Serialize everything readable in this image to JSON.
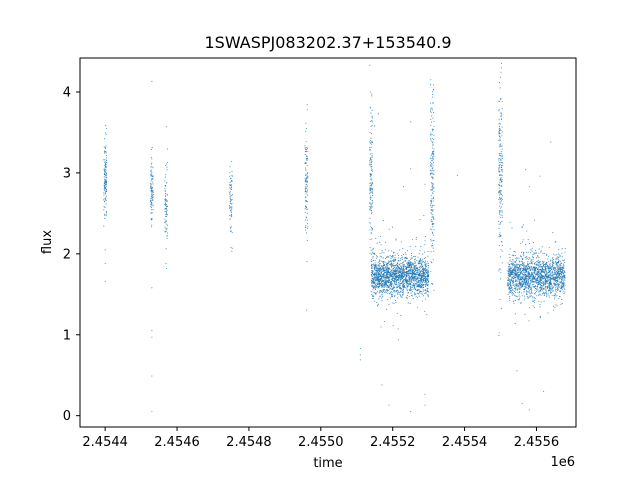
{
  "chart_data": {
    "type": "scatter",
    "title": "1SWASPJ083202.37+153540.9",
    "xlabel": "time",
    "ylabel": "flux",
    "x_offset_label": "1e6",
    "xlim": [
      2.45433,
      2.45571
    ],
    "ylim": [
      -0.14,
      4.42
    ],
    "x_ticks": [
      2.4544,
      2.4546,
      2.4548,
      2.455,
      2.4552,
      2.4554,
      2.4556
    ],
    "x_tick_labels": [
      "2.4544",
      "2.4546",
      "2.4548",
      "2.4550",
      "2.4552",
      "2.4554",
      "2.4556"
    ],
    "y_ticks": [
      0,
      1,
      2,
      3,
      4
    ],
    "y_tick_labels": [
      "0",
      "1",
      "2",
      "3",
      "4"
    ],
    "grid": false,
    "marker_color": "#1f77b4",
    "series": [
      {
        "clusters": [
          {
            "x": 2.4544,
            "x_spread": 4e-06,
            "y_center": 2.95,
            "y_spread": 0.22,
            "count": 130
          },
          {
            "x": 2.45453,
            "x_spread": 4e-06,
            "y_center": 2.8,
            "y_spread": 0.18,
            "count": 90
          },
          {
            "x": 2.45457,
            "x_spread": 4e-06,
            "y_center": 2.6,
            "y_spread": 0.2,
            "count": 80
          },
          {
            "x": 2.45475,
            "x_spread": 4e-06,
            "y_center": 2.7,
            "y_spread": 0.2,
            "count": 70
          },
          {
            "x": 2.45496,
            "x_spread": 4e-06,
            "y_center": 2.9,
            "y_spread": 0.35,
            "count": 110
          },
          {
            "x": 2.45514,
            "x_spread": 4e-06,
            "y_center": 2.95,
            "y_spread": 0.5,
            "count": 140
          },
          {
            "x": 2.45522,
            "x_spread": 8e-05,
            "y_center": 1.72,
            "y_spread": 0.12,
            "count": 1900
          },
          {
            "x": 2.45531,
            "x_spread": 5e-06,
            "y_center": 2.9,
            "y_spread": 0.55,
            "count": 180
          },
          {
            "x": 2.4555,
            "x_spread": 5e-06,
            "y_center": 3.0,
            "y_spread": 0.55,
            "count": 200
          },
          {
            "x": 2.4556,
            "x_spread": 8e-05,
            "y_center": 1.72,
            "y_spread": 0.12,
            "count": 1700
          }
        ],
        "outliers": [
          {
            "x": 2.4544,
            "y": 1.66
          },
          {
            "x": 2.4544,
            "y": 2.05
          },
          {
            "x": 2.4544,
            "y": 1.88
          },
          {
            "x": 2.45453,
            "y": 4.13
          },
          {
            "x": 2.45453,
            "y": 1.58
          },
          {
            "x": 2.45453,
            "y": 1.05
          },
          {
            "x": 2.45453,
            "y": 0.97
          },
          {
            "x": 2.45453,
            "y": 0.49
          },
          {
            "x": 2.45453,
            "y": 0.05
          },
          {
            "x": 2.45457,
            "y": 3.57
          },
          {
            "x": 2.45511,
            "y": 0.83
          },
          {
            "x": 2.45511,
            "y": 0.69
          },
          {
            "x": 2.45511,
            "y": 0.75
          },
          {
            "x": 2.45517,
            "y": 0.38
          },
          {
            "x": 2.45519,
            "y": 0.13
          },
          {
            "x": 2.45525,
            "y": 0.05
          },
          {
            "x": 2.45529,
            "y": 0.13
          },
          {
            "x": 2.45529,
            "y": 0.26
          },
          {
            "x": 2.45556,
            "y": 0.15
          },
          {
            "x": 2.45558,
            "y": 0.07
          },
          {
            "x": 2.45562,
            "y": 0.3
          },
          {
            "x": 2.45515,
            "y": 3.58
          },
          {
            "x": 2.45516,
            "y": 3.73
          },
          {
            "x": 2.45525,
            "y": 3.63
          },
          {
            "x": 2.45525,
            "y": 3.05
          },
          {
            "x": 2.45523,
            "y": 2.83
          },
          {
            "x": 2.45529,
            "y": 2.86
          },
          {
            "x": 2.45538,
            "y": 2.97
          },
          {
            "x": 2.45557,
            "y": 3.04
          },
          {
            "x": 2.45561,
            "y": 2.96
          },
          {
            "x": 2.45564,
            "y": 3.38
          },
          {
            "x": 2.45558,
            "y": 2.83
          }
        ]
      }
    ]
  }
}
